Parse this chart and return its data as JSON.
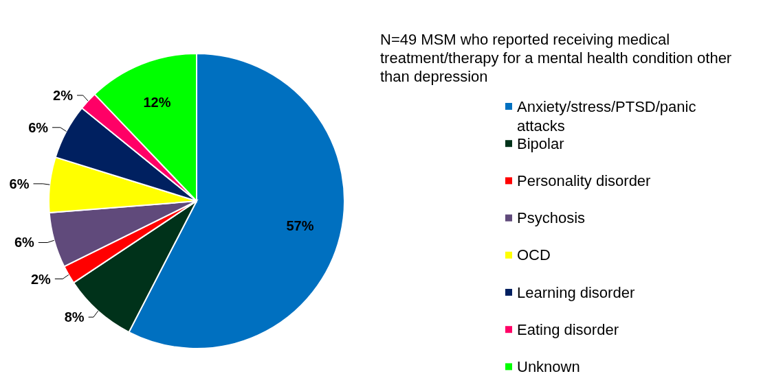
{
  "chart_data": {
    "type": "pie",
    "title": "N=49 MSM who reported receiving medical treatment/therapy for a mental health condition other than depression",
    "categories": [
      "Anxiety/stress/PTSD/panic attacks",
      "Bipolar",
      "Personality disorder",
      "Psychosis",
      "OCD",
      "Learning disorder",
      "Eating disorder",
      "Unknown"
    ],
    "values": [
      57,
      8,
      2,
      6,
      6,
      6,
      2,
      12
    ],
    "colors": [
      "#0070c0",
      "#00321a",
      "#ff0000",
      "#604a7b",
      "#ffff00",
      "#002060",
      "#ff0066",
      "#00ff00"
    ],
    "value_labels": [
      "57%",
      "8%",
      "2%",
      "6%",
      "6%",
      "6%",
      "2%",
      "12%"
    ],
    "legend": "right"
  }
}
